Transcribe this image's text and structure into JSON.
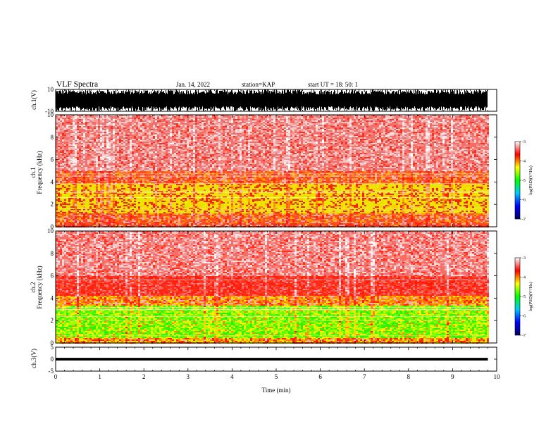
{
  "header": {
    "title": "VLF Spectra",
    "date": "Jan. 14, 2022",
    "station": "station=KAP",
    "start": "start UT = 18: 50: 1"
  },
  "colors": {
    "spectrogram_low": "#f8d8d8",
    "spectrogram_mid": "#ff2a1a",
    "spectrogram_high": "#e8e800",
    "spectrogram_peak": "#00e000",
    "waveform": "#000000",
    "colorbar_stops": [
      "#000060",
      "#0000ff",
      "#00c8ff",
      "#00ff00",
      "#ffff00",
      "#ff0000",
      "#ffffff"
    ]
  },
  "chart_data": [
    {
      "type": "line",
      "panel": "ch1-waveform",
      "ylabel": "ch.1(V)",
      "ylim": [
        -10,
        10
      ],
      "yticks": [
        "10",
        "-10"
      ],
      "xlim": [
        0,
        10
      ],
      "x_extent_min": 9.8,
      "description_values": "full-scale oscillating waveform between -10 and 10 V"
    },
    {
      "type": "heatmap",
      "panel": "ch1-spectrogram",
      "ylabel": "ch.1\nFrequency (kHz)",
      "ylim": [
        0,
        10
      ],
      "yticks": [
        "0",
        "2",
        "4",
        "6",
        "8",
        "10"
      ],
      "xlim": [
        0,
        10
      ],
      "x_extent_min": 9.8,
      "colorbar": {
        "label": "log(PSD)(V²/Hz)",
        "range": [
          -7,
          -3
        ],
        "ticks": [
          "-3",
          "-4",
          "-5",
          "-6",
          "-7"
        ]
      },
      "bands_khz": [
        {
          "from": 0,
          "to": 0.3,
          "level": -3.8
        },
        {
          "from": 0.3,
          "to": 1.2,
          "level": -3.9
        },
        {
          "from": 1.2,
          "to": 3.8,
          "level": -4.4
        },
        {
          "from": 3.8,
          "to": 5.0,
          "level": -3.9
        },
        {
          "from": 5.0,
          "to": 10.0,
          "level": -3.2
        }
      ]
    },
    {
      "type": "heatmap",
      "panel": "ch2-spectrogram",
      "ylabel": "ch.2\nFrequency (kHz)",
      "ylim": [
        0,
        10
      ],
      "yticks": [
        "0",
        "2",
        "4",
        "6",
        "8",
        "10"
      ],
      "xlim": [
        0,
        10
      ],
      "x_extent_min": 9.8,
      "colorbar": {
        "label": "log(PSD)(V²/Hz)",
        "range": [
          -7,
          -3
        ],
        "ticks": [
          "-3",
          "-4",
          "-5",
          "-6",
          "-7"
        ]
      },
      "bands_khz": [
        {
          "from": 0,
          "to": 0.5,
          "level": -4.2
        },
        {
          "from": 0.5,
          "to": 3.3,
          "level": -5.0
        },
        {
          "from": 3.3,
          "to": 4.2,
          "level": -4.1
        },
        {
          "from": 4.2,
          "to": 6.0,
          "level": -3.6
        },
        {
          "from": 6.0,
          "to": 10.0,
          "level": -3.2
        }
      ]
    },
    {
      "type": "line",
      "panel": "ch3-waveform",
      "ylabel": "ch.3(V)",
      "ylim": [
        -5,
        5
      ],
      "yticks": [
        "5",
        "0",
        "-5"
      ],
      "xlim": [
        0,
        10
      ],
      "x_extent_min": 9.8,
      "xlabel": "Time (min)",
      "xticks": [
        "0",
        "1",
        "2",
        "3",
        "4",
        "5",
        "6",
        "7",
        "8",
        "9",
        "10"
      ],
      "description_values": "narrow band near 0 V, amplitude about ±0.5 V"
    }
  ]
}
